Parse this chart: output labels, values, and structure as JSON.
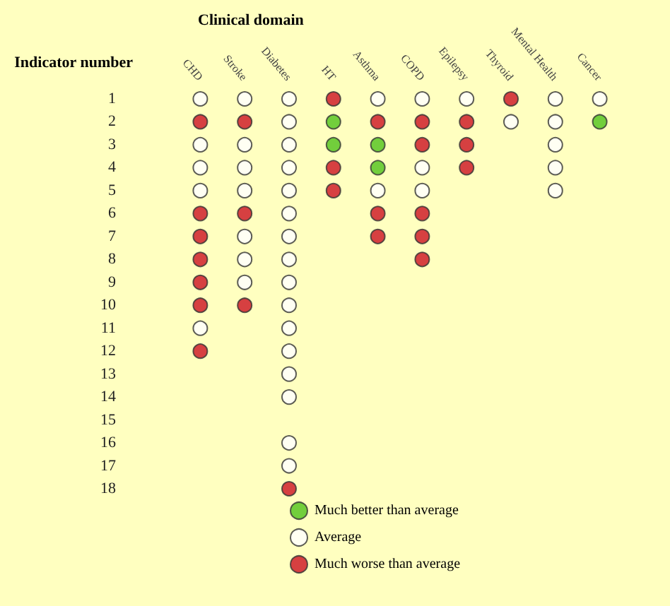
{
  "chart_data": {
    "type": "scatter",
    "title": "Clinical domain",
    "ylabel": "Indicator number",
    "categories": [
      "CHD",
      "Stroke",
      "Diabetes",
      "HT",
      "Asthma",
      "COPD",
      "Epilepsy",
      "Thyroid",
      "Mental Health",
      "Cancer"
    ],
    "ylim": [
      18,
      1
    ],
    "yticks": [
      1,
      2,
      3,
      4,
      5,
      6,
      7,
      8,
      9,
      10,
      11,
      12,
      13,
      14,
      15,
      16,
      17,
      18
    ],
    "marker": "circle",
    "grid": false,
    "legend": "bottom",
    "series": [
      {
        "name": "Much better than average",
        "color": "#4fc21a",
        "x": [
          "HT",
          "Cancer",
          "HT",
          "Asthma",
          "Asthma"
        ],
        "values": [
          2,
          2,
          3,
          3,
          4
        ]
      },
      {
        "name": "Average",
        "color": "#ffffff",
        "x": [
          "CHD",
          "Stroke",
          "Diabetes",
          "Asthma",
          "COPD",
          "Epilepsy",
          "Mental Health",
          "Cancer",
          "Diabetes",
          "Thyroid",
          "Mental Health",
          "CHD",
          "Stroke",
          "Diabetes",
          "Mental Health",
          "CHD",
          "Stroke",
          "Diabetes",
          "COPD",
          "Mental Health",
          "CHD",
          "Stroke",
          "Diabetes",
          "Asthma",
          "COPD",
          "Mental Health",
          "Diabetes",
          "Stroke",
          "Diabetes",
          "Stroke",
          "Diabetes",
          "Stroke",
          "Diabetes",
          "Diabetes",
          "CHD",
          "Diabetes",
          "Diabetes",
          "Diabetes",
          "Diabetes",
          "Diabetes",
          "Diabetes"
        ],
        "values": [
          1,
          1,
          1,
          1,
          1,
          1,
          1,
          1,
          2,
          2,
          2,
          3,
          3,
          3,
          3,
          4,
          4,
          4,
          4,
          4,
          5,
          5,
          5,
          5,
          5,
          5,
          6,
          7,
          7,
          8,
          8,
          9,
          9,
          10,
          11,
          11,
          12,
          13,
          14,
          16,
          17
        ]
      },
      {
        "name": "Much worse than average",
        "color": "#cc1020",
        "x": [
          "HT",
          "Thyroid",
          "CHD",
          "Stroke",
          "Asthma",
          "COPD",
          "Epilepsy",
          "COPD",
          "Epilepsy",
          "HT",
          "Epilepsy",
          "HT",
          "CHD",
          "Stroke",
          "Asthma",
          "COPD",
          "CHD",
          "Asthma",
          "COPD",
          "CHD",
          "COPD",
          "CHD",
          "CHD",
          "Stroke",
          "CHD",
          "Diabetes"
        ],
        "values": [
          1,
          1,
          2,
          2,
          2,
          2,
          2,
          3,
          3,
          4,
          4,
          5,
          6,
          6,
          6,
          6,
          7,
          7,
          7,
          8,
          8,
          9,
          10,
          10,
          12,
          18
        ]
      }
    ]
  }
}
